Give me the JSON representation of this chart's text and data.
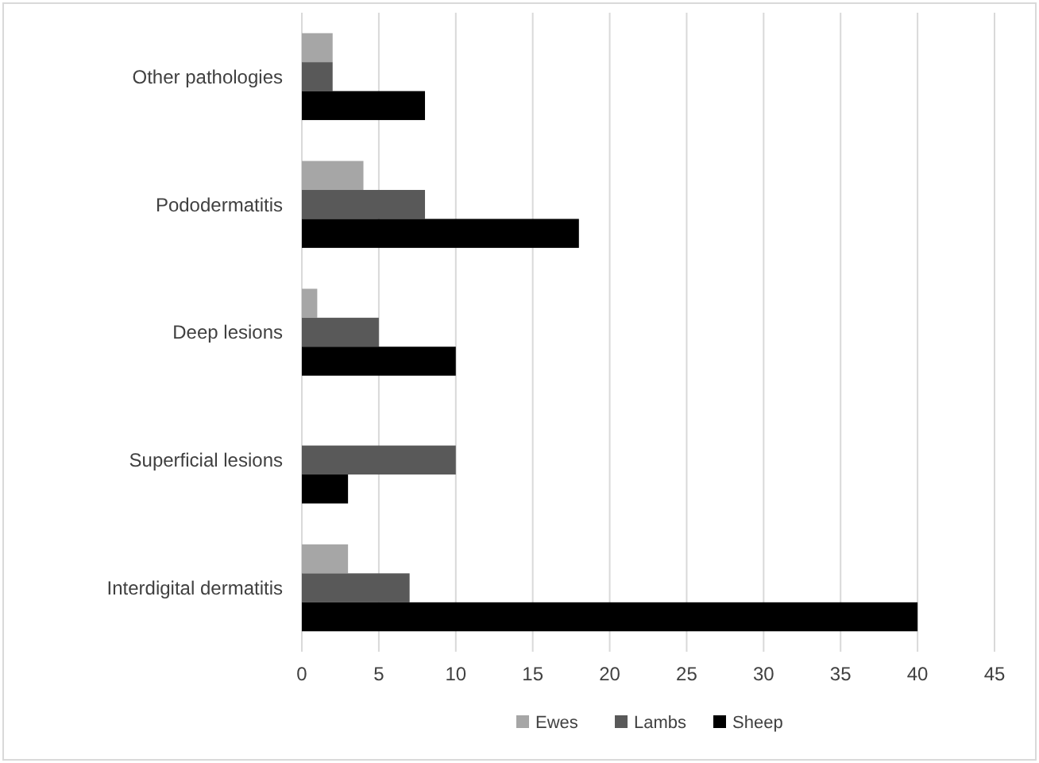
{
  "chart_data": {
    "type": "bar",
    "orientation": "horizontal",
    "categories": [
      "Other pathologies",
      "Pododermatitis",
      "Deep lesions",
      "Superficial lesions",
      "Interdigital dermatitis"
    ],
    "series": [
      {
        "name": "Ewes",
        "color": "#a6a6a6",
        "values": [
          2,
          4,
          1,
          0,
          3
        ]
      },
      {
        "name": "Lambs",
        "color": "#595959",
        "values": [
          2,
          8,
          5,
          10,
          7
        ]
      },
      {
        "name": "Sheep",
        "color": "#000000",
        "values": [
          8,
          18,
          10,
          3,
          40
        ]
      }
    ],
    "xlim": [
      0,
      45
    ],
    "xticks": [
      0,
      5,
      10,
      15,
      20,
      25,
      30,
      35,
      40,
      45
    ],
    "grid": "x",
    "legend": "bottom"
  }
}
